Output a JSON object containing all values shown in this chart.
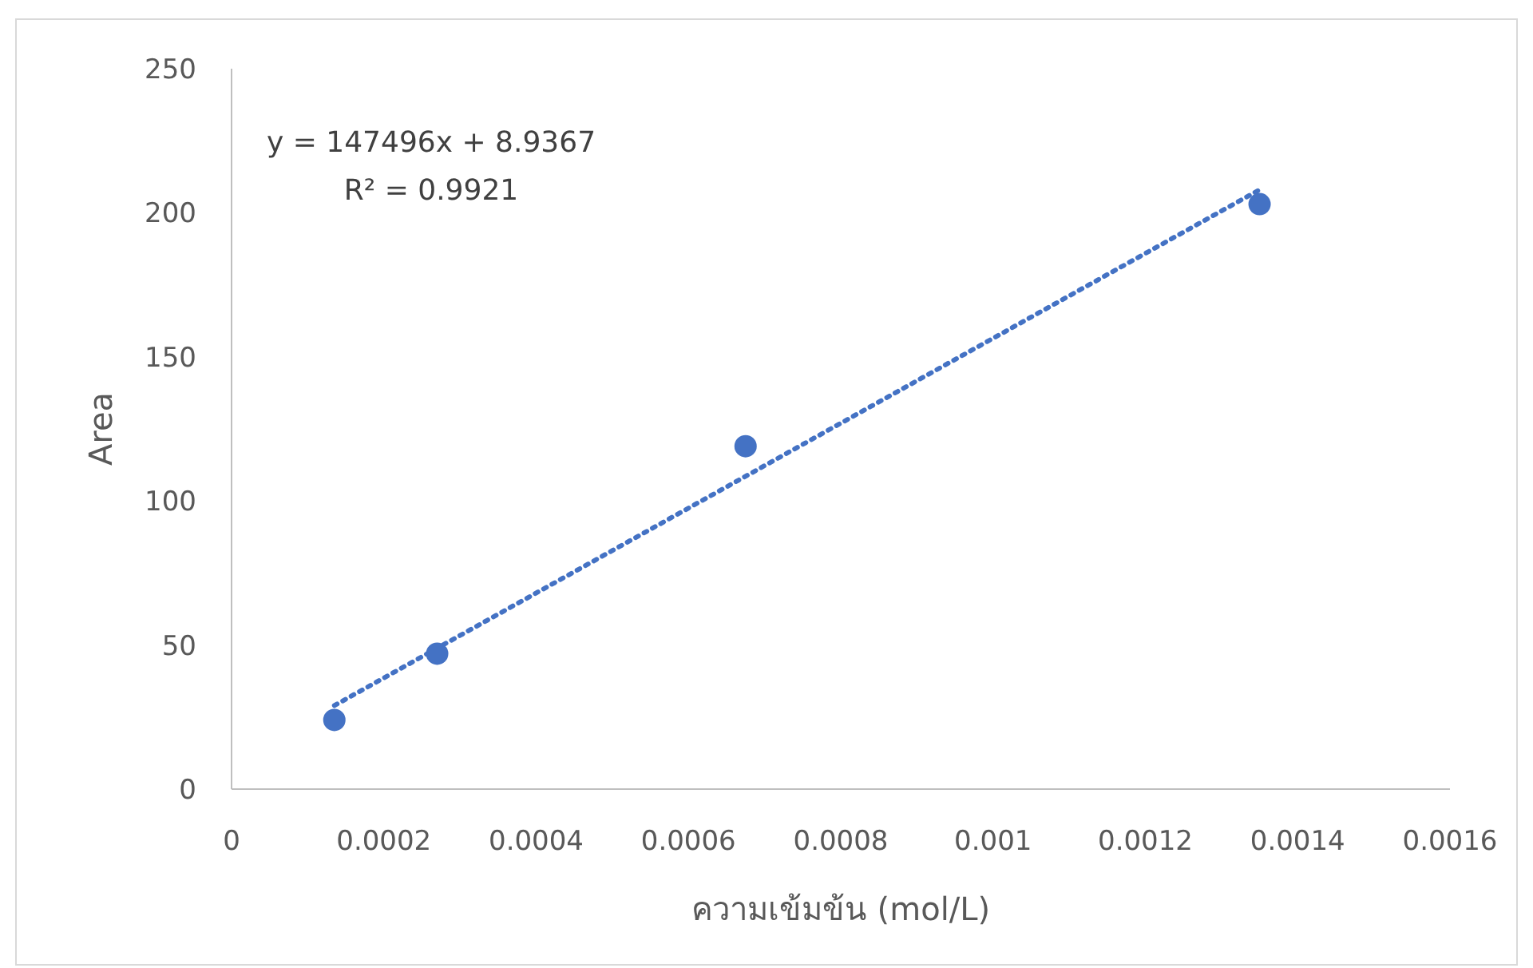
{
  "chart_data": {
    "type": "scatter",
    "xlabel": "ความเข้มข้น (mol/L)",
    "ylabel": "Area",
    "annotations": [
      "y = 147496x + 8.9367",
      "R² = 0.9921"
    ],
    "xlim": [
      0,
      0.0016
    ],
    "xticks": [
      0,
      0.0002,
      0.0004,
      0.0006,
      0.0008,
      0.001,
      0.0012,
      0.0014,
      0.0016
    ],
    "ylim": [
      0,
      250
    ],
    "yticks": [
      0,
      50,
      100,
      150,
      200,
      250
    ],
    "grid": false,
    "series": [
      {
        "color": "#4472c4",
        "marker": "circle",
        "x": [
          0.000135,
          0.00027,
          0.000675,
          0.00135
        ],
        "values": [
          24,
          47,
          119,
          203
        ]
      },
      {
        "type": "line",
        "color": "#4472c4",
        "marker": "none",
        "line_style": "dotted",
        "x": [
          0.000135,
          0.00135
        ],
        "values": [
          29,
          208
        ]
      }
    ]
  }
}
